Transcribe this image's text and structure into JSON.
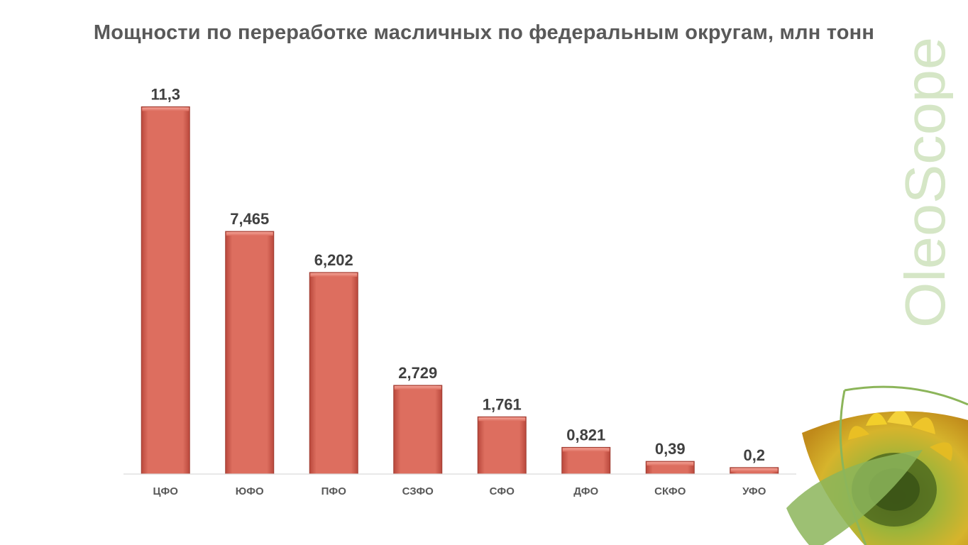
{
  "logo": {
    "text": "OleoScope"
  },
  "colors": {
    "bar": "#dd6e5f",
    "bar_edge": "#9e3b30",
    "title": "#595959",
    "logo": "#d5e6c6",
    "leaf": "#8cb55a"
  },
  "chart_data": {
    "type": "bar",
    "title": "Мощности по переработке масличных по федеральным округам, млн тонн",
    "xlabel": "",
    "ylabel": "",
    "ylim": [
      0,
      12
    ],
    "grid": false,
    "legend": "none",
    "categories": [
      "ЦФО",
      "ЮФО",
      "ПФО",
      "СЗФО",
      "СФО",
      "ДФО",
      "СКФО",
      "УФО"
    ],
    "values": [
      11.3,
      7.465,
      6.202,
      2.729,
      1.761,
      0.821,
      0.39,
      0.2
    ],
    "value_labels": [
      "11,3",
      "7,465",
      "6,202",
      "2,729",
      "1,761",
      "0,821",
      "0,39",
      "0,2"
    ]
  }
}
